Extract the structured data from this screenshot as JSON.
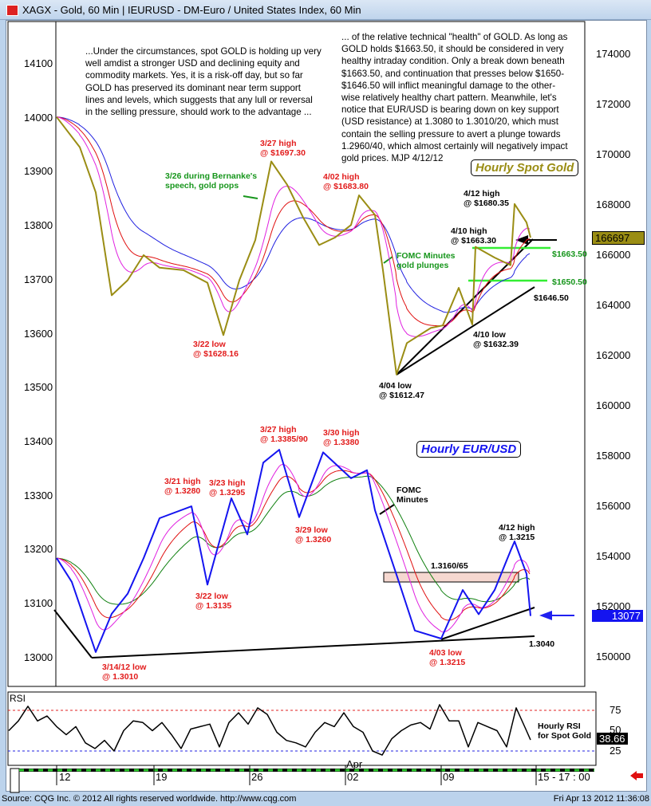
{
  "window": {
    "title": "XAGX - Gold, 60 Min   |   IEURUSD - DM-Euro / United States Index, 60 Min"
  },
  "commentary": {
    "left": [
      "...Under the circumstances, spot GOLD is holding up very",
      "well amdist a stronger USD and declining equity and",
      "commodity markets. Yes, it is a risk-off day, but so far",
      "GOLD has preserved its dominant near term support",
      "lines and levels, which suggests that any lull or reversal",
      "in the selling pressure, should work to the advantage ..."
    ],
    "right": [
      "... of the relative technical \"health\" of GOLD. As long as",
      "GOLD holds $1663.50, it should be considered in very",
      "healthy intraday condition. Only a break down beneath",
      "$1663.50, and continuation that presses below $1650-",
      "$1646.50 will inflict meaningful damage to the other-",
      "wise relatively healthy chart pattern. Meanwhile, let's",
      "notice that EUR/USD is bearing down on key support",
      "(USD resistance) at 1.3080 to 1.3010/20, which must",
      "contain the selling pressure to avert a plunge towards",
      "1.2960/40, which almost certainly will negatively impact",
      "gold prices. MJP  4/12/12"
    ]
  },
  "chart_data": [
    {
      "type": "line",
      "title": "Hourly Spot Gold",
      "axis": "right",
      "ylim": [
        150000,
        174000
      ],
      "yticks": [
        "174000",
        "172000",
        "170000",
        "168000",
        "166000",
        "164000",
        "162000",
        "160000",
        "158000",
        "156000",
        "154000",
        "152000",
        "150000"
      ],
      "last_value": "166697",
      "color": "#9a8d14",
      "x": [
        "03-12 00",
        "03-13 05",
        "03-14 01",
        "03-14 21",
        "03-15 17",
        "03-16 13",
        "03-19 09",
        "03-20 15",
        "03-21 21",
        "03-22 17",
        "03-23 13",
        "03-26 09",
        "03-27 05",
        "03-28 01",
        "03-28 21",
        "03-29 17",
        "03-30 13",
        "04-02 09",
        "04-02 19",
        "04-03 15",
        "04-04 01",
        "04-04 18",
        "04-05 07",
        "04-06 13",
        "04-09 04",
        "04-10 00",
        "04-10 17",
        "04-10 21",
        "04-11 21",
        "04-12 17",
        "04-12 22",
        "04-13 13",
        "04-13 18"
      ],
      "y": [
        171500,
        170300,
        168500,
        164400,
        165000,
        166000,
        165500,
        165400,
        164900,
        162816,
        165000,
        166600,
        169730,
        168800,
        167500,
        166400,
        166700,
        167200,
        168380,
        167600,
        165400,
        161247,
        162500,
        163100,
        163200,
        164700,
        163239,
        166330,
        165900,
        165600,
        168035,
        167300,
        166697
      ],
      "annotations": {
        "h327": [
          "3/27 high",
          "@ $1697.30"
        ],
        "bernanke": [
          "3/26 during Bernanke's",
          "speech, gold pops"
        ],
        "h402": [
          "4/02 high",
          "@ $1683.80"
        ],
        "l322": [
          "3/22 low",
          "@ $1628.16"
        ],
        "fomc": [
          "FOMC Minutes",
          "gold plunges"
        ],
        "h412": [
          "4/12 high",
          "@ $1680.35"
        ],
        "h410": [
          "4/10 high",
          "@ $1663.30"
        ],
        "s1": "$1663.50",
        "s2": "$1650.50",
        "s3": "$1646.50",
        "l410": [
          "4/10 low",
          "@ $1632.39"
        ],
        "l404": [
          "4/04 low",
          "@ $1612.47"
        ]
      },
      "levels": [
        166350,
        165050
      ]
    },
    {
      "type": "line",
      "title": "Hourly EUR/USD",
      "axis": "left",
      "ylim": [
        13000,
        14100
      ],
      "yticks": [
        "14100",
        "14000",
        "13900",
        "13800",
        "13700",
        "13600",
        "13500",
        "13400",
        "13300",
        "13200",
        "13100",
        "13000"
      ],
      "last_value": "13077",
      "color": "#1414f0",
      "x": [
        "03-12 00",
        "03-12 19",
        "03-14 01",
        "03-14 21",
        "03-15 17",
        "03-16 13",
        "03-19 09",
        "03-21 01",
        "03-21 21",
        "03-23 03",
        "03-23 23",
        "03-26 19",
        "03-27 15",
        "03-28 16",
        "03-29 22",
        "04-02 09",
        "04-03 05",
        "04-03 15",
        "04-04 21",
        "04-05 17",
        "04-09 02",
        "04-10 05",
        "04-11 01",
        "04-11 21",
        "04-12 17",
        "04-12 22",
        "04-13 13",
        "04-13 18"
      ],
      "y": [
        13184,
        13140,
        13010,
        13081,
        13118,
        13184,
        13258,
        13280,
        13135,
        13295,
        13228,
        13361,
        13385,
        13260,
        13380,
        13332,
        13347,
        13273,
        13140,
        13050,
        13035,
        13125,
        13080,
        13125,
        13198,
        13215,
        13155,
        13077
      ],
      "annotations": {
        "h327": [
          "3/27 high",
          "@ 1.3385/90"
        ],
        "h330": [
          "3/30 high",
          "@ 1.3380"
        ],
        "h321": [
          "3/21 high",
          "@ 1.3280"
        ],
        "h323": [
          "3/23 high",
          "@ 1.3295"
        ],
        "fomc": [
          "FOMC",
          "Minutes"
        ],
        "l329": [
          "3/29 low",
          "@ 1.3260"
        ],
        "l322": [
          "3/22 low",
          "@ 1.3135"
        ],
        "zone": "1.3160/65",
        "h412": [
          "4/12 high",
          "@ 1.3215"
        ],
        "s": "1.3040",
        "l403": [
          "4/03 low",
          "@ 1.3215"
        ],
        "l314": [
          "3/14/12 low",
          "@ 1.3010"
        ]
      }
    },
    {
      "type": "line",
      "title": "RSI",
      "note": [
        "Hourly RSI",
        "for Spot Gold"
      ],
      "ylim": [
        0,
        100
      ],
      "yticks": [
        "75",
        "50",
        "25"
      ],
      "reference_lines": [
        75,
        25
      ],
      "last_value": "38.66",
      "x": [
        "03-07 12",
        "03-08 00",
        "03-08 12",
        "03-09 00",
        "03-09 12",
        "03-12 00",
        "03-12 12",
        "03-13 00",
        "03-13 12",
        "03-14 00",
        "03-14 12",
        "03-15 00",
        "03-15 12",
        "03-16 00",
        "03-16 12",
        "03-19 00",
        "03-19 12",
        "03-20 00",
        "03-20 12",
        "03-21 00",
        "03-21 12",
        "03-22 00",
        "03-22 12",
        "03-23 00",
        "03-23 12",
        "03-26 00",
        "03-26 12",
        "03-27 00",
        "03-27 12",
        "03-28 00",
        "03-28 12",
        "03-29 00",
        "03-29 12",
        "03-30 00",
        "03-30 12",
        "04-02 00",
        "04-02 12",
        "04-03 00",
        "04-03 12",
        "04-04 00",
        "04-04 12",
        "04-05 00",
        "04-05 12",
        "04-06 00",
        "04-06 12",
        "04-09 00",
        "04-09 12",
        "04-10 00",
        "04-10 12",
        "04-11 00",
        "04-11 12",
        "04-12 00",
        "04-12 12",
        "04-13 00",
        "04-13 12",
        "04-13 18"
      ],
      "y": [
        50,
        62,
        80,
        62,
        68,
        55,
        45,
        55,
        35,
        28,
        38,
        25,
        50,
        62,
        60,
        50,
        60,
        45,
        28,
        52,
        55,
        58,
        30,
        60,
        72,
        58,
        78,
        70,
        48,
        38,
        35,
        30,
        48,
        60,
        55,
        72,
        55,
        48,
        25,
        20,
        40,
        50,
        57,
        60,
        52,
        82,
        62,
        62,
        30,
        60,
        55,
        50,
        30,
        78,
        52,
        38.66
      ]
    }
  ],
  "xaxis": {
    "ticks": [
      "12",
      "19",
      "26",
      "02",
      "09"
    ],
    "month": "Apr",
    "end_label": "15 - 17 : 00"
  },
  "footer": {
    "source": "Source: CQG Inc. © 2012 All rights reserved worldwide. http://www.cqg.com",
    "timestamp": "Fri Apr 13 2012 11:36:08"
  }
}
